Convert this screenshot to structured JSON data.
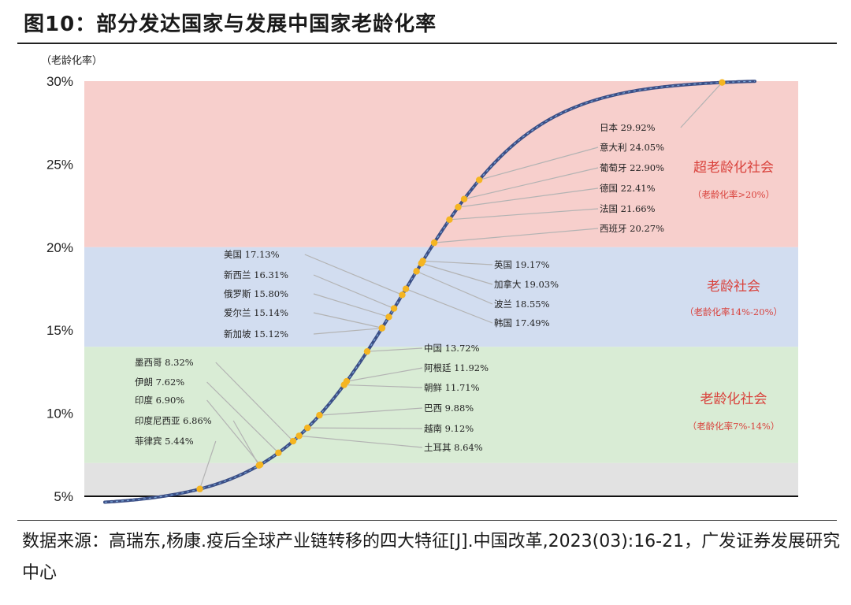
{
  "figure_title": "图10：部分发达国家与发展中国家老龄化率",
  "source": "数据来源：高瑞东,杨康.疫后全球产业链转移的四大特征[J].中国改革,2023(03):16-21，广发证券发展研究中心",
  "chart_data": {
    "type": "scatter",
    "title": "部分发达国家与发展中国家老龄化率",
    "ylabel": "（老龄化率）",
    "ylim": [
      5,
      30
    ],
    "y_ticks": [
      "5%",
      "10%",
      "15%",
      "20%",
      "25%",
      "30%"
    ],
    "grid": false,
    "zones": [
      {
        "name": "超老龄化社会",
        "criterion": "（老龄化率>20%）",
        "range": [
          20,
          30
        ],
        "color": "#f7cfcc"
      },
      {
        "name": "老龄社会",
        "criterion": "（老龄化率14%-20%）",
        "range": [
          14,
          20
        ],
        "color": "#d2ddf0"
      },
      {
        "name": "老龄化社会",
        "criterion": "（老龄化率7%-14%）",
        "range": [
          7,
          14
        ],
        "color": "#d9ecd5"
      },
      {
        "name": "",
        "criterion": "",
        "range": [
          5,
          7
        ],
        "color": "#e2e2e2"
      }
    ],
    "points": [
      {
        "country": "菲律宾",
        "value": 5.44,
        "label": "菲律宾 5.44%"
      },
      {
        "country": "印度尼西亚",
        "value": 6.86,
        "label": "印度尼西亚 6.86%"
      },
      {
        "country": "印度",
        "value": 6.9,
        "label": "印度 6.90%"
      },
      {
        "country": "伊朗",
        "value": 7.62,
        "label": "伊朗 7.62%"
      },
      {
        "country": "墨西哥",
        "value": 8.32,
        "label": "墨西哥 8.32%"
      },
      {
        "country": "土耳其",
        "value": 8.64,
        "label": "土耳其 8.64%"
      },
      {
        "country": "越南",
        "value": 9.12,
        "label": "越南 9.12%"
      },
      {
        "country": "巴西",
        "value": 9.88,
        "label": "巴西 9.88%"
      },
      {
        "country": "朝鲜",
        "value": 11.71,
        "label": "朝鲜 11.71%"
      },
      {
        "country": "阿根廷",
        "value": 11.92,
        "label": "阿根廷 11.92%"
      },
      {
        "country": "中国",
        "value": 13.72,
        "label": "中国 13.72%"
      },
      {
        "country": "新加坡",
        "value": 15.12,
        "label": "新加坡 15.12%"
      },
      {
        "country": "爱尔兰",
        "value": 15.14,
        "label": "爱尔兰 15.14%"
      },
      {
        "country": "俄罗斯",
        "value": 15.8,
        "label": "俄罗斯 15.80%"
      },
      {
        "country": "新西兰",
        "value": 16.31,
        "label": "新西兰 16.31%"
      },
      {
        "country": "美国",
        "value": 17.13,
        "label": "美国 17.13%"
      },
      {
        "country": "韩国",
        "value": 17.49,
        "label": "韩国 17.49%"
      },
      {
        "country": "波兰",
        "value": 18.55,
        "label": "波兰 18.55%"
      },
      {
        "country": "加拿大",
        "value": 19.03,
        "label": "加拿大 19.03%"
      },
      {
        "country": "英国",
        "value": 19.17,
        "label": "英国 19.17%"
      },
      {
        "country": "西班牙",
        "value": 20.27,
        "label": "西班牙 20.27%"
      },
      {
        "country": "法国",
        "value": 21.66,
        "label": "法国 21.66%"
      },
      {
        "country": "德国",
        "value": 22.41,
        "label": "德国 22.41%"
      },
      {
        "country": "葡萄牙",
        "value": 22.9,
        "label": "葡萄牙 22.90%"
      },
      {
        "country": "意大利",
        "value": 24.05,
        "label": "意大利 24.05%"
      },
      {
        "country": "日本",
        "value": 29.92,
        "label": "日本 29.92%"
      }
    ],
    "colors": {
      "curve": "#3c4f86",
      "curve_dash": "#7aa7d8",
      "marker": "#f5b521",
      "zone_text": "#d9423c",
      "leader": "#b3b3b3"
    }
  }
}
